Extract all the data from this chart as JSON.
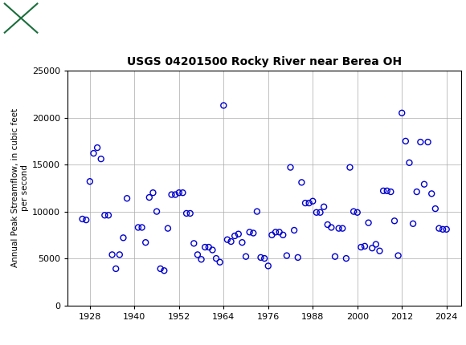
{
  "title": "USGS 04201500 Rocky River near Berea OH",
  "ylabel": "Annual Peak Streamflow, in cubic feet\nper second",
  "xlabel": "",
  "xlim": [
    1922,
    2028
  ],
  "ylim": [
    0,
    25000
  ],
  "yticks": [
    0,
    5000,
    10000,
    15000,
    20000,
    25000
  ],
  "xticks": [
    1928,
    1940,
    1952,
    1964,
    1976,
    1988,
    2000,
    2012,
    2024
  ],
  "marker_color": "#0000cc",
  "marker_facecolor": "none",
  "marker_size": 5,
  "marker_linewidth": 1.0,
  "grid_color": "#aaaaaa",
  "background_color": "#ffffff",
  "header_color": "#1a6e3c",
  "years": [
    1926,
    1927,
    1928,
    1929,
    1930,
    1931,
    1932,
    1933,
    1934,
    1935,
    1936,
    1937,
    1938,
    1941,
    1942,
    1943,
    1944,
    1945,
    1946,
    1947,
    1948,
    1949,
    1950,
    1951,
    1952,
    1953,
    1954,
    1955,
    1956,
    1957,
    1958,
    1959,
    1960,
    1961,
    1962,
    1963,
    1964,
    1965,
    1966,
    1967,
    1968,
    1969,
    1970,
    1971,
    1972,
    1973,
    1974,
    1975,
    1976,
    1977,
    1978,
    1979,
    1980,
    1981,
    1982,
    1983,
    1984,
    1985,
    1986,
    1987,
    1988,
    1989,
    1990,
    1991,
    1992,
    1993,
    1994,
    1995,
    1996,
    1997,
    1998,
    1999,
    2000,
    2001,
    2002,
    2003,
    2004,
    2005,
    2006,
    2007,
    2008,
    2009,
    2010,
    2011,
    2012,
    2013,
    2014,
    2015,
    2016,
    2017,
    2018,
    2019,
    2020,
    2021,
    2022,
    2023,
    2024
  ],
  "flows": [
    9200,
    9100,
    13200,
    16200,
    16800,
    15600,
    9600,
    9600,
    5400,
    3900,
    5400,
    7200,
    11400,
    8300,
    8300,
    6700,
    11500,
    12000,
    10000,
    3900,
    3700,
    8200,
    11800,
    11800,
    12000,
    12000,
    9800,
    9800,
    6600,
    5400,
    4900,
    6200,
    6200,
    5900,
    5000,
    4600,
    21300,
    7000,
    6800,
    7400,
    7600,
    6700,
    5200,
    7800,
    7700,
    10000,
    5100,
    5000,
    4200,
    7500,
    7800,
    7800,
    7500,
    5300,
    14700,
    8000,
    5100,
    13100,
    10900,
    10900,
    11100,
    9900,
    9900,
    10500,
    8600,
    8300,
    5200,
    8200,
    8200,
    5000,
    14700,
    10000,
    9900,
    6200,
    6300,
    8800,
    6100,
    6500,
    5800,
    12200,
    12200,
    12100,
    9000,
    5300,
    20500,
    17500,
    15200,
    8700,
    12100,
    17400,
    12900,
    17400,
    11900,
    10300,
    8200,
    8100,
    8100
  ]
}
